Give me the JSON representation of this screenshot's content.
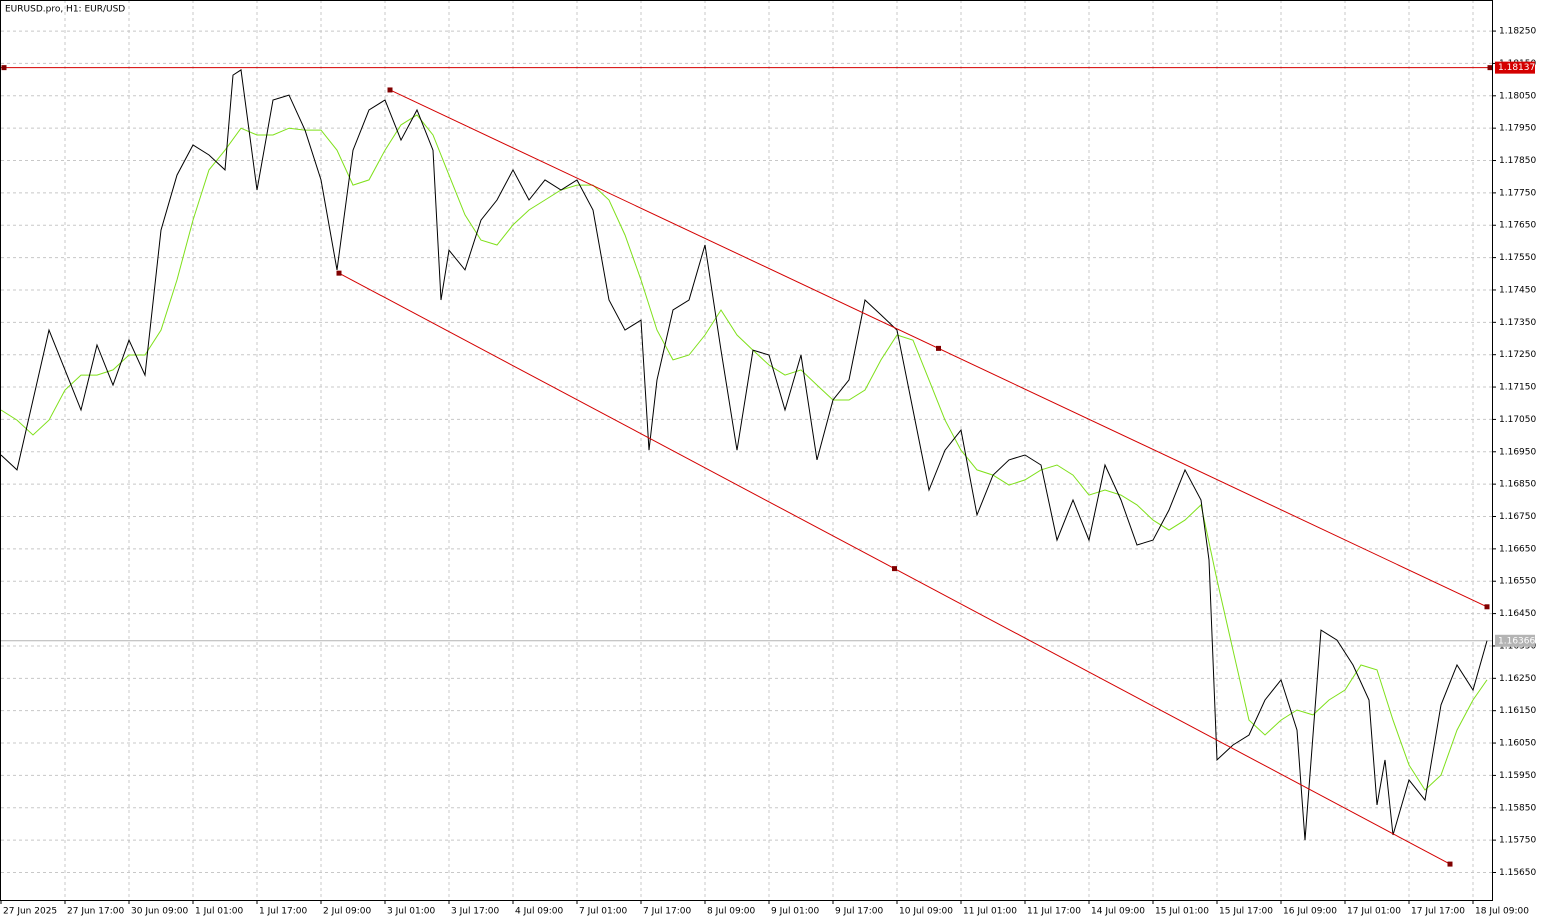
{
  "chart_data": {
    "type": "line",
    "title": "EURUSD.pro, H1:  EUR/USD",
    "xlim": [
      0,
      373
    ],
    "ylim": [
      1.15565,
      1.18346
    ],
    "grid": true,
    "xticks": [
      {
        "value": 0,
        "label": "27 Jun 2025"
      },
      {
        "value": 16,
        "label": "27 Jun 17:00"
      },
      {
        "value": 32,
        "label": "30 Jun 09:00"
      },
      {
        "value": 48,
        "label": "1 Jul 01:00"
      },
      {
        "value": 64,
        "label": "1 Jul 17:00"
      },
      {
        "value": 80,
        "label": "2 Jul 09:00"
      },
      {
        "value": 96,
        "label": "3 Jul 01:00"
      },
      {
        "value": 112,
        "label": "3 Jul 17:00"
      },
      {
        "value": 128,
        "label": "4 Jul 09:00"
      },
      {
        "value": 144,
        "label": "7 Jul 01:00"
      },
      {
        "value": 160,
        "label": "7 Jul 17:00"
      },
      {
        "value": 176,
        "label": "8 Jul 09:00"
      },
      {
        "value": 192,
        "label": "9 Jul 01:00"
      },
      {
        "value": 208,
        "label": "9 Jul 17:00"
      },
      {
        "value": 224,
        "label": "10 Jul 09:00"
      },
      {
        "value": 240,
        "label": "11 Jul 01:00"
      },
      {
        "value": 256,
        "label": "11 Jul 17:00"
      },
      {
        "value": 272,
        "label": "14 Jul 09:00"
      },
      {
        "value": 288,
        "label": "15 Jul 01:00"
      },
      {
        "value": 304,
        "label": "15 Jul 17:00"
      },
      {
        "value": 320,
        "label": "16 Jul 09:00"
      },
      {
        "value": 336,
        "label": "17 Jul 01:00"
      },
      {
        "value": 352,
        "label": "17 Jul 17:00"
      },
      {
        "value": 368,
        "label": "18 Jul 09:00"
      }
    ],
    "yticks": [
      {
        "value": 1.1565,
        "label": "1.15650"
      },
      {
        "value": 1.1575,
        "label": "1.15750"
      },
      {
        "value": 1.1585,
        "label": "1.15850"
      },
      {
        "value": 1.1595,
        "label": "1.15950"
      },
      {
        "value": 1.1605,
        "label": "1.16050"
      },
      {
        "value": 1.1615,
        "label": "1.16150"
      },
      {
        "value": 1.1625,
        "label": "1.16250"
      },
      {
        "value": 1.1635,
        "label": "1.16350"
      },
      {
        "value": 1.1645,
        "label": "1.16450"
      },
      {
        "value": 1.1655,
        "label": "1.16550"
      },
      {
        "value": 1.1665,
        "label": "1.16650"
      },
      {
        "value": 1.1675,
        "label": "1.16750"
      },
      {
        "value": 1.1685,
        "label": "1.16850"
      },
      {
        "value": 1.1695,
        "label": "1.16950"
      },
      {
        "value": 1.1705,
        "label": "1.17050"
      },
      {
        "value": 1.1715,
        "label": "1.17150"
      },
      {
        "value": 1.1725,
        "label": "1.17250"
      },
      {
        "value": 1.1735,
        "label": "1.17350"
      },
      {
        "value": 1.1745,
        "label": "1.17450"
      },
      {
        "value": 1.1755,
        "label": "1.17550"
      },
      {
        "value": 1.1765,
        "label": "1.17650"
      },
      {
        "value": 1.1775,
        "label": "1.17750"
      },
      {
        "value": 1.1785,
        "label": "1.17850"
      },
      {
        "value": 1.1795,
        "label": "1.17950"
      },
      {
        "value": 1.1805,
        "label": "1.18050"
      },
      {
        "value": 1.1815,
        "label": "1.18150"
      },
      {
        "value": 1.1825,
        "label": "1.18250"
      }
    ],
    "series": [
      {
        "color": "#000000",
        "x": [
          0,
          4,
          8,
          12,
          16,
          20,
          24,
          28,
          32,
          36,
          40,
          44,
          48,
          52,
          56,
          58,
          60,
          64,
          68,
          72,
          76,
          80,
          84,
          88,
          92,
          96,
          100,
          104,
          108,
          110,
          112,
          116,
          120,
          124,
          128,
          132,
          136,
          140,
          144,
          148,
          152,
          156,
          160,
          162,
          164,
          168,
          172,
          176,
          180,
          184,
          188,
          192,
          196,
          200,
          204,
          208,
          212,
          216,
          220,
          224,
          228,
          232,
          236,
          240,
          244,
          248,
          252,
          256,
          260,
          264,
          268,
          272,
          276,
          280,
          284,
          288,
          292,
          296,
          300,
          302,
          304,
          308,
          312,
          316,
          320,
          324,
          326,
          330,
          334,
          338,
          342,
          344,
          346,
          348,
          352,
          356,
          360,
          364,
          368,
          371.5
        ],
        "values": [
          1.1694,
          1.16894,
          1.1711,
          1.17326,
          1.17203,
          1.17079,
          1.1728,
          1.17156,
          1.17295,
          1.17187,
          1.17635,
          1.17805,
          1.17898,
          1.17867,
          1.17821,
          1.18114,
          1.1813,
          1.17759,
          1.18037,
          1.18052,
          1.17944,
          1.1779,
          1.17512,
          1.17882,
          1.18006,
          1.18037,
          1.17913,
          1.18006,
          1.17882,
          1.17419,
          1.17573,
          1.17512,
          1.17666,
          1.17728,
          1.17821,
          1.17728,
          1.1779,
          1.17759,
          1.1779,
          1.17697,
          1.17419,
          1.17326,
          1.17357,
          1.16955,
          1.17172,
          1.17388,
          1.17419,
          1.17589,
          1.17264,
          1.16955,
          1.17264,
          1.17249,
          1.17079,
          1.17249,
          1.16925,
          1.1711,
          1.17172,
          1.17419,
          1.17373,
          1.17326,
          1.17079,
          1.16832,
          1.16955,
          1.17017,
          1.16755,
          1.16878,
          1.16925,
          1.1694,
          1.16909,
          1.16677,
          1.16801,
          1.16677,
          1.16909,
          1.16801,
          1.16662,
          1.16677,
          1.1677,
          1.16894,
          1.16801,
          1.16616,
          1.15998,
          1.16044,
          1.16075,
          1.16183,
          1.16245,
          1.1609,
          1.1575,
          1.16399,
          1.16368,
          1.16291,
          1.16183,
          1.15859,
          1.15998,
          1.15766,
          1.15936,
          1.15874,
          1.16168,
          1.16291,
          1.16214,
          1.16366
        ]
      },
      {
        "color": "#7fe01a",
        "x": [
          0,
          4,
          8,
          12,
          16,
          20,
          24,
          28,
          32,
          36,
          40,
          44,
          48,
          52,
          56,
          60,
          64,
          68,
          72,
          76,
          80,
          84,
          88,
          92,
          96,
          100,
          104,
          108,
          112,
          116,
          120,
          124,
          128,
          132,
          136,
          140,
          144,
          148,
          152,
          156,
          160,
          164,
          168,
          172,
          176,
          180,
          184,
          188,
          192,
          196,
          200,
          204,
          208,
          212,
          216,
          220,
          224,
          228,
          232,
          236,
          240,
          244,
          248,
          252,
          256,
          260,
          264,
          268,
          272,
          276,
          280,
          284,
          288,
          292,
          296,
          300,
          304,
          308,
          312,
          316,
          320,
          324,
          328,
          332,
          336,
          340,
          344,
          348,
          352,
          356,
          360,
          364,
          368,
          371.5
        ],
        "values": [
          1.17079,
          1.17048,
          1.17002,
          1.17048,
          1.17141,
          1.17187,
          1.17187,
          1.17203,
          1.17249,
          1.17249,
          1.17326,
          1.17481,
          1.17666,
          1.17821,
          1.17882,
          1.1795,
          1.17929,
          1.17929,
          1.1795,
          1.17944,
          1.17944,
          1.17882,
          1.17774,
          1.1779,
          1.17882,
          1.1796,
          1.17991,
          1.17929,
          1.17805,
          1.17682,
          1.17604,
          1.17589,
          1.17651,
          1.17697,
          1.17728,
          1.17759,
          1.17774,
          1.17774,
          1.17728,
          1.1762,
          1.17481,
          1.17326,
          1.17234,
          1.17249,
          1.17311,
          1.17388,
          1.17311,
          1.17264,
          1.17218,
          1.17187,
          1.17203,
          1.17156,
          1.1711,
          1.1711,
          1.17141,
          1.17234,
          1.17311,
          1.17295,
          1.17172,
          1.17048,
          1.16955,
          1.16894,
          1.16878,
          1.16847,
          1.16863,
          1.16894,
          1.16909,
          1.16878,
          1.16816,
          1.16832,
          1.16816,
          1.16786,
          1.16739,
          1.16708,
          1.16739,
          1.16786,
          1.16554,
          1.16337,
          1.16121,
          1.16075,
          1.16121,
          1.16152,
          1.16137,
          1.16183,
          1.16214,
          1.16291,
          1.16276,
          1.16121,
          1.15982,
          1.15905,
          1.15951,
          1.1609,
          1.16183,
          1.16245
        ]
      }
    ],
    "trendlines": [
      {
        "color": "#d40000",
        "x": [
          97.25,
          371.5
        ],
        "values": [
          1.18068,
          1.16471
        ]
      },
      {
        "color": "#d40000",
        "x": [
          84.5,
          362.25
        ],
        "values": [
          1.17502,
          1.15676
        ]
      }
    ],
    "hline": {
      "value": 1.18137,
      "label": "1.18137",
      "color": "#d40000"
    },
    "last_price": {
      "value": 1.16366,
      "label": "1.16366",
      "color": "#b4b4b4"
    }
  }
}
